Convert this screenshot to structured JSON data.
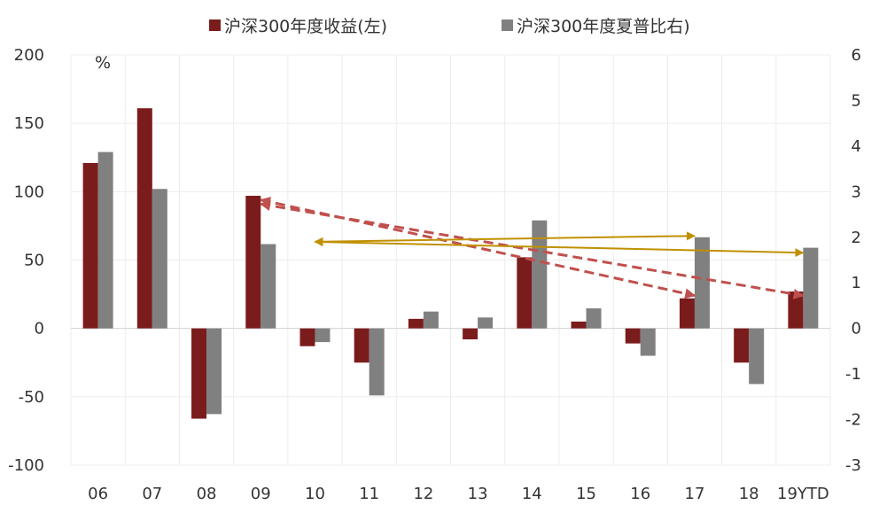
{
  "chart_data": {
    "type": "bar",
    "categories": [
      "06",
      "07",
      "08",
      "09",
      "10",
      "11",
      "12",
      "13",
      "14",
      "15",
      "16",
      "17",
      "18",
      "19YTD"
    ],
    "series": [
      {
        "name": "沪深300年度收益(左)",
        "axis": "left",
        "color": "#7b1c1c",
        "values": [
          121,
          161,
          -66,
          97,
          -13,
          -25,
          7,
          -8,
          52,
          5,
          -11,
          22,
          -25,
          27
        ]
      },
      {
        "name": "沪深300年度夏普比右)",
        "axis": "right",
        "color": "#808080",
        "values": [
          3.87,
          3.06,
          -1.88,
          1.85,
          -0.3,
          -1.47,
          0.37,
          0.24,
          2.37,
          0.44,
          -0.6,
          2.0,
          -1.22,
          1.77
        ]
      }
    ],
    "left_axis": {
      "min": -100,
      "max": 200,
      "ticks": [
        "-100",
        "-50",
        "0",
        "50",
        "100",
        "150",
        "200"
      ],
      "unit": "%"
    },
    "right_axis": {
      "min": -3,
      "max": 6,
      "ticks": [
        "-3",
        "-2",
        "-1",
        "0",
        "1",
        "2",
        "3",
        "4",
        "5",
        "6"
      ]
    },
    "legend_position": "top",
    "grid": true,
    "annotations": [
      {
        "kind": "dashed-arrow",
        "color": "#c0504d",
        "from": {
          "category": "09",
          "axis": "left",
          "value": 94
        },
        "to": {
          "category": "17",
          "axis": "left",
          "value": 24
        }
      },
      {
        "kind": "dashed-arrow",
        "color": "#c0504d",
        "from": {
          "category": "09",
          "axis": "left",
          "value": 91
        },
        "to": {
          "category": "19YTD",
          "axis": "left",
          "value": 24
        }
      },
      {
        "kind": "solid-double-arrow",
        "color": "#c09000",
        "from": {
          "category": "10",
          "axis": "right",
          "value": 1.9
        },
        "to": {
          "category": "17",
          "axis": "right",
          "value": 2.03
        }
      },
      {
        "kind": "solid-double-arrow",
        "color": "#c09000",
        "from": {
          "category": "10",
          "axis": "right",
          "value": 1.9
        },
        "to": {
          "category": "19YTD",
          "axis": "right",
          "value": 1.66
        }
      }
    ]
  }
}
